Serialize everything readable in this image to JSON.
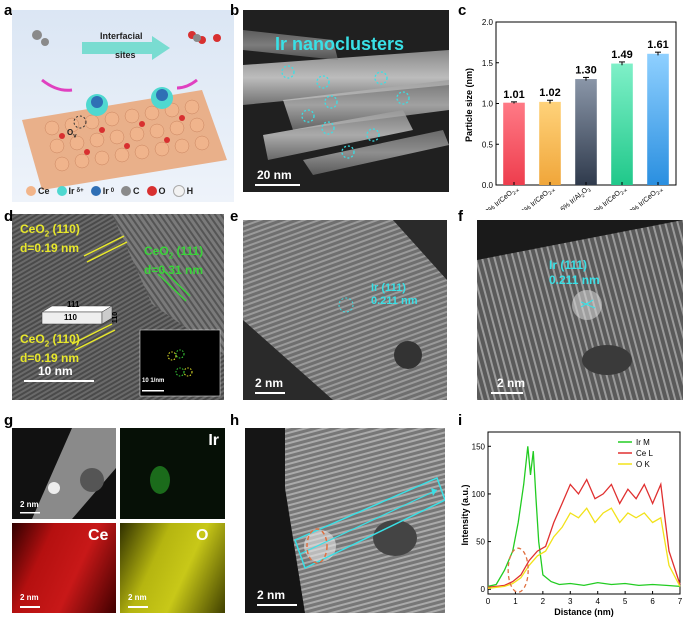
{
  "panel_labels": {
    "a": "a",
    "b": "b",
    "c": "c",
    "d": "d",
    "e": "e",
    "f": "f",
    "g": "g",
    "h": "h",
    "i": "i"
  },
  "panel_a": {
    "arrow_text_1": "Interfacial",
    "arrow_text_2": "sites",
    "ov_label": "O",
    "ov_sub": "v",
    "legend": [
      {
        "name": "Ce",
        "color": "#f2b58a"
      },
      {
        "name": "Ir",
        "sup": "δ+",
        "color": "#4fd8d0"
      },
      {
        "name": "Ir",
        "sup": "0",
        "color": "#2f6fb5"
      },
      {
        "name": "C",
        "color": "#8a8a8a"
      },
      {
        "name": "O",
        "color": "#d83030"
      },
      {
        "name": "H",
        "color": "#f2f2f2"
      }
    ]
  },
  "panel_b": {
    "title": "Ir nanoclusters",
    "scale": "20 nm"
  },
  "panel_c": {
    "chart_data": {
      "type": "bar",
      "ylabel": "Particle size (nm)",
      "ylim": [
        0.0,
        2.0
      ],
      "yticks": [
        "0.0",
        "0.5",
        "1.0",
        "1.5",
        "2.0"
      ],
      "categories": [
        {
          "pre": "0.2% Ir/CeO",
          "sub1": "2",
          "mid": "",
          "sub2": "-x"
        },
        {
          "pre": "0.6% Ir/CeO",
          "sub1": "2",
          "mid": "",
          "sub2": "-x"
        },
        {
          "pre": "0.6% Ir/Al",
          "sub1": "2",
          "mid": "O",
          "sub2": "3"
        },
        {
          "pre": "2.0% Ir/CeO",
          "sub1": "2",
          "mid": "",
          "sub2": "-x"
        },
        {
          "pre": "3.0% Ir/CeO",
          "sub1": "2",
          "mid": "",
          "sub2": "-x"
        }
      ],
      "values": [
        1.01,
        1.02,
        1.3,
        1.49,
        1.61
      ],
      "value_labels": [
        "1.01",
        "1.02",
        "1.30",
        "1.49",
        "1.61"
      ],
      "errors": [
        0.01,
        0.02,
        0.02,
        0.02,
        0.02
      ],
      "colors": [
        [
          "#ff7a86",
          "#ee3d4d"
        ],
        [
          "#ffd27a",
          "#f0a63a"
        ],
        [
          "#8a96a8",
          "#2f3a4c"
        ],
        [
          "#7ff0c8",
          "#20c88a"
        ],
        [
          "#8fd0ff",
          "#2a8fe0"
        ]
      ]
    }
  },
  "panel_d": {
    "label1_pre": "CeO",
    "label1_sub": "2",
    "label1_post": " (110)",
    "label1_d": "d=0.19 nm",
    "label2_pre": "CeO",
    "label2_sub": "2",
    "label2_post": " (111)",
    "label2_d": "d=0.31 nm",
    "label3_pre": "CeO",
    "label3_sub": "2",
    "label3_post": " (110)",
    "label3_d": "d=0.19 nm",
    "box_top": "111",
    "box_front": "110",
    "box_side": "110",
    "scale": "10 nm",
    "fft_scale": "10 1/nm"
  },
  "panel_e": {
    "label": "Ir (111)",
    "d": "0.211 nm",
    "scale": "2 nm"
  },
  "panel_f": {
    "label": "Ir (111)",
    "d": "0.211 nm",
    "scale": "2 nm"
  },
  "panel_g": {
    "tile_ir": "Ir",
    "tile_ce": "Ce",
    "tile_o": "O",
    "scale": "2 nm"
  },
  "panel_h": {
    "scale": "2 nm"
  },
  "panel_i": {
    "chart_data": {
      "type": "line",
      "xlabel": "Distance (nm)",
      "ylabel": "Intensity (a.u.)",
      "xlim": [
        0,
        7
      ],
      "ylim": [
        -5,
        165
      ],
      "xticks": [
        "0",
        "1",
        "2",
        "3",
        "4",
        "5",
        "6",
        "7"
      ],
      "yticks": [
        "0",
        "50",
        "100",
        "150"
      ],
      "series": [
        {
          "name": "Ir M",
          "color": "#22cc22",
          "x": [
            0,
            0.3,
            0.6,
            0.9,
            1.1,
            1.3,
            1.45,
            1.55,
            1.65,
            1.75,
            1.85,
            2.0,
            2.3,
            2.6,
            3.0,
            3.5,
            4.0,
            4.5,
            5.0,
            5.5,
            6.0,
            6.5,
            7.0
          ],
          "y": [
            3,
            5,
            20,
            40,
            70,
            110,
            150,
            120,
            145,
            95,
            50,
            15,
            8,
            5,
            6,
            4,
            7,
            5,
            6,
            4,
            5,
            4,
            3
          ]
        },
        {
          "name": "Ce L",
          "color": "#e03030",
          "x": [
            0,
            0.3,
            0.6,
            0.9,
            1.2,
            1.5,
            1.8,
            2.1,
            2.4,
            2.7,
            3.0,
            3.3,
            3.6,
            3.9,
            4.2,
            4.5,
            4.8,
            5.1,
            5.4,
            5.7,
            6.0,
            6.3,
            6.6,
            7.0
          ],
          "y": [
            2,
            3,
            4,
            8,
            15,
            30,
            40,
            45,
            70,
            90,
            110,
            100,
            115,
            95,
            100,
            110,
            90,
            105,
            95,
            110,
            90,
            110,
            40,
            5
          ]
        },
        {
          "name": "O K",
          "color": "#f2e21a",
          "x": [
            0,
            0.3,
            0.6,
            0.9,
            1.2,
            1.5,
            1.8,
            2.1,
            2.4,
            2.7,
            3.0,
            3.3,
            3.6,
            3.9,
            4.2,
            4.5,
            4.8,
            5.1,
            5.4,
            5.7,
            6.0,
            6.3,
            6.6,
            7.0
          ],
          "y": [
            1,
            2,
            3,
            6,
            12,
            25,
            35,
            40,
            55,
            65,
            80,
            75,
            85,
            70,
            80,
            85,
            70,
            80,
            75,
            80,
            70,
            75,
            25,
            3
          ]
        }
      ],
      "legend_loc": "top-right"
    }
  }
}
